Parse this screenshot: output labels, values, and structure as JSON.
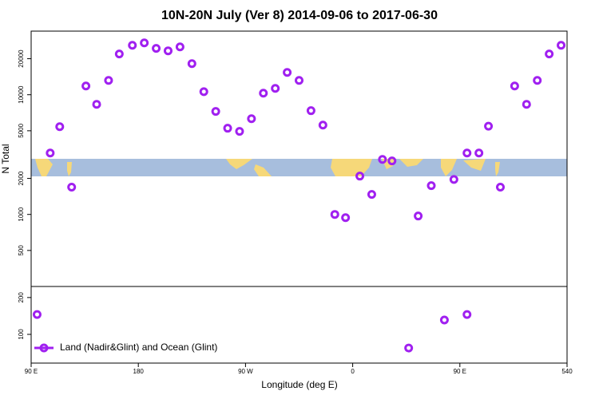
{
  "chart_data": [
    {
      "type": "scatter",
      "title": "10N-20N July (Ver 8)   2014-09-06 to 2017-06-30",
      "ylabel": "N Total",
      "log_scale": true,
      "color": "#a020f0",
      "xlim": [
        90,
        540
      ],
      "ylim": [
        250,
        34000
      ],
      "yticks": [
        500,
        1000,
        2000,
        5000,
        10000,
        20000
      ],
      "x": [
        106,
        114,
        124,
        136,
        145,
        155,
        164,
        175,
        185,
        195,
        205,
        215,
        225,
        235,
        245,
        255,
        265,
        275,
        285,
        295,
        305,
        315,
        325,
        335,
        345,
        354,
        366,
        376,
        385,
        393,
        415,
        426,
        445,
        456,
        466,
        474,
        484,
        496,
        506,
        515,
        525,
        535
      ],
      "values": [
        3260,
        5410,
        1690,
        11840,
        8320,
        13180,
        21900,
        25900,
        27100,
        24400,
        23270,
        25100,
        18200,
        10600,
        7250,
        5250,
        4940,
        6310,
        10300,
        11300,
        15370,
        13180,
        7360,
        5580,
        1000,
        940,
        2090,
        1470,
        2880,
        2800,
        970,
        1740,
        1960,
        3260,
        3260,
        5460,
        1690,
        11840,
        8320,
        13180,
        21900,
        25900
      ]
    },
    {
      "type": "scatter",
      "xlabel": "Longitude (deg E)",
      "color": "#a020f0",
      "legend": "bottom-left",
      "series_name": "Land (Nadir&Glint) and Ocean (Glint)",
      "xlim": [
        90,
        540
      ],
      "ylim": [
        22,
        230
      ],
      "yticks": [
        100,
        200
      ],
      "xticks": [
        {
          "value": 90,
          "label": "90 E"
        },
        180,
        {
          "value": 270,
          "label": "90 W"
        },
        {
          "value": 360,
          "label": "0"
        },
        {
          "value": 450,
          "label": "90 E"
        },
        540
      ],
      "x": [
        95,
        407,
        437,
        456
      ],
      "values": [
        154,
        63,
        139,
        154
      ]
    }
  ]
}
